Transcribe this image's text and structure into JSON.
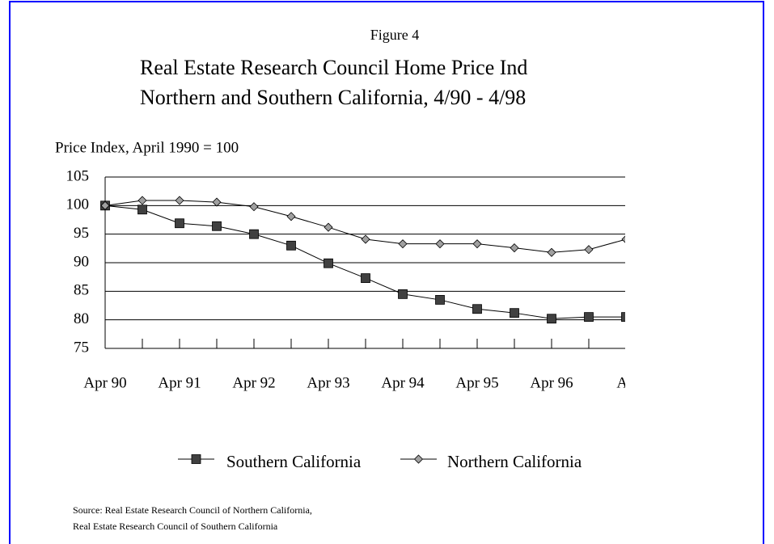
{
  "chart_data": {
    "type": "line",
    "figure_label": "Figure 4",
    "title": "Real Estate Research Council Home Price Ind",
    "subtitle": "Northern and Southern California, 4/90 - 4/98",
    "y_axis_label": "Price Index, April 1990 = 100",
    "categories": [
      "Apr 90",
      null,
      "Apr 91",
      null,
      "Apr 92",
      null,
      "Apr 93",
      null,
      "Apr 94",
      null,
      "Apr 95",
      null,
      "Apr 96",
      null,
      "Ap"
    ],
    "series": [
      {
        "name": "Southern California",
        "color": "#404040",
        "marker": "square",
        "values": [
          100,
          99.3,
          96.9,
          96.4,
          95.0,
          93.0,
          89.9,
          87.3,
          84.5,
          83.5,
          81.9,
          81.2,
          80.2,
          80.5,
          80.5
        ]
      },
      {
        "name": "Northern California",
        "color": "#a0a0a0",
        "marker": "diamond",
        "values": [
          100,
          100.9,
          100.9,
          100.6,
          99.8,
          98.1,
          96.2,
          94.1,
          93.3,
          93.3,
          93.3,
          92.6,
          91.8,
          92.3,
          94.1
        ]
      }
    ],
    "ylim": [
      75,
      105
    ],
    "yticks": [
      75,
      80,
      85,
      90,
      95,
      100,
      105
    ],
    "grid": true,
    "source": [
      "Source:  Real Estate Research Council of Northern California,",
      "Real Estate Research Council of Southern California"
    ]
  }
}
